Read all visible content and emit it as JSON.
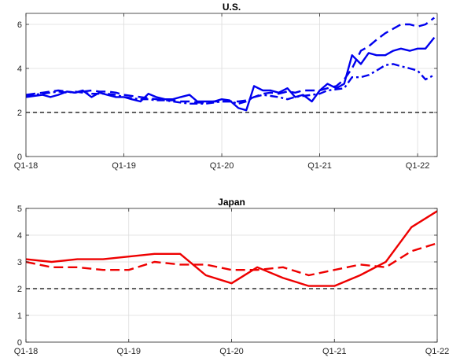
{
  "chart_data": [
    {
      "type": "line",
      "title": "U.S.",
      "xlabel": "",
      "ylabel": "",
      "x_tick_labels": [
        "Q1-18",
        "Q1-19",
        "Q1-20",
        "Q1-21",
        "Q1-22"
      ],
      "x_ticks": [
        2018.0,
        2019.0,
        2020.0,
        2021.0,
        2022.0
      ],
      "xlim": [
        2018.0,
        2022.2
      ],
      "ylim": [
        0,
        6.5
      ],
      "y_ticks": [
        0,
        2,
        4,
        6
      ],
      "grid": true,
      "reference_line": {
        "y": 2,
        "style": "dashed",
        "color": "#000000"
      },
      "series": [
        {
          "color": "#0000ee",
          "style": "solid",
          "x": [
            2018.0,
            2018.08,
            2018.17,
            2018.25,
            2018.33,
            2018.42,
            2018.5,
            2018.58,
            2018.67,
            2018.75,
            2018.83,
            2018.92,
            2019.0,
            2019.08,
            2019.17,
            2019.25,
            2019.33,
            2019.42,
            2019.5,
            2019.58,
            2019.67,
            2019.75,
            2019.83,
            2019.92,
            2020.0,
            2020.08,
            2020.17,
            2020.25,
            2020.33,
            2020.42,
            2020.5,
            2020.58,
            2020.67,
            2020.75,
            2020.83,
            2020.92,
            2021.0,
            2021.08,
            2021.17,
            2021.25,
            2021.33,
            2021.42,
            2021.5,
            2021.58,
            2021.67,
            2021.75,
            2021.83,
            2021.92,
            2022.0,
            2022.08,
            2022.17
          ],
          "y": [
            2.7,
            2.75,
            2.8,
            2.7,
            2.8,
            2.95,
            2.9,
            3.0,
            2.7,
            2.9,
            2.8,
            2.7,
            2.7,
            2.6,
            2.5,
            2.85,
            2.7,
            2.6,
            2.6,
            2.7,
            2.8,
            2.5,
            2.5,
            2.5,
            2.6,
            2.55,
            2.2,
            2.1,
            3.2,
            3.0,
            3.0,
            2.9,
            3.1,
            2.7,
            2.8,
            2.5,
            3.0,
            3.3,
            3.1,
            3.3,
            4.6,
            4.2,
            4.7,
            4.6,
            4.6,
            4.8,
            4.9,
            4.8,
            4.9,
            4.9,
            5.4
          ]
        },
        {
          "color": "#0000ee",
          "style": "dashed",
          "x": [
            2018.0,
            2018.08,
            2018.17,
            2018.25,
            2018.33,
            2018.42,
            2018.5,
            2018.58,
            2018.67,
            2018.75,
            2018.83,
            2018.92,
            2019.0,
            2019.08,
            2019.17,
            2019.25,
            2019.33,
            2019.42,
            2019.5,
            2019.58,
            2019.67,
            2019.75,
            2019.83,
            2019.92,
            2020.0,
            2020.08,
            2020.17,
            2020.25,
            2020.33,
            2020.42,
            2020.5,
            2020.58,
            2020.67,
            2020.75,
            2020.83,
            2020.92,
            2021.0,
            2021.08,
            2021.17,
            2021.25,
            2021.33,
            2021.42,
            2021.5,
            2021.58,
            2021.67,
            2021.75,
            2021.83,
            2021.92,
            2022.0,
            2022.08,
            2022.17
          ],
          "y": [
            2.8,
            2.85,
            2.9,
            2.95,
            3.0,
            2.95,
            2.9,
            2.95,
            3.0,
            2.95,
            2.95,
            2.9,
            2.8,
            2.75,
            2.7,
            2.65,
            2.6,
            2.55,
            2.55,
            2.5,
            2.5,
            2.45,
            2.45,
            2.5,
            2.5,
            2.5,
            2.5,
            2.55,
            2.7,
            2.85,
            2.9,
            2.85,
            2.95,
            2.9,
            3.0,
            3.0,
            3.0,
            3.1,
            3.2,
            3.5,
            4.0,
            4.8,
            5.0,
            5.3,
            5.6,
            5.8,
            6.0,
            6.0,
            5.9,
            6.0,
            6.3
          ]
        },
        {
          "color": "#0000ee",
          "style": "dash-dot",
          "x": [
            2018.0,
            2018.08,
            2018.17,
            2018.25,
            2018.33,
            2018.42,
            2018.5,
            2018.58,
            2018.67,
            2018.75,
            2018.83,
            2018.92,
            2019.0,
            2019.08,
            2019.17,
            2019.25,
            2019.33,
            2019.42,
            2019.5,
            2019.58,
            2019.67,
            2019.75,
            2019.83,
            2019.92,
            2020.0,
            2020.08,
            2020.17,
            2020.25,
            2020.33,
            2020.42,
            2020.5,
            2020.58,
            2020.67,
            2020.75,
            2020.83,
            2020.92,
            2021.0,
            2021.08,
            2021.17,
            2021.25,
            2021.33,
            2021.42,
            2021.5,
            2021.58,
            2021.67,
            2021.75,
            2021.83,
            2021.92,
            2022.0,
            2022.08,
            2022.17
          ],
          "y": [
            2.75,
            2.8,
            2.85,
            2.9,
            2.95,
            2.9,
            2.95,
            2.9,
            2.85,
            2.85,
            2.85,
            2.8,
            2.7,
            2.65,
            2.6,
            2.6,
            2.55,
            2.55,
            2.5,
            2.45,
            2.4,
            2.4,
            2.4,
            2.45,
            2.5,
            2.5,
            2.4,
            2.5,
            2.7,
            2.8,
            2.75,
            2.7,
            2.6,
            2.7,
            2.75,
            2.8,
            2.85,
            3.0,
            3.05,
            3.1,
            3.6,
            3.6,
            3.7,
            3.9,
            4.15,
            4.2,
            4.1,
            4.0,
            3.9,
            3.5,
            3.7
          ]
        }
      ]
    },
    {
      "type": "line",
      "title": "Japan",
      "xlabel": "",
      "ylabel": "",
      "x_tick_labels": [
        "Q1-18",
        "Q1-19",
        "Q1-20",
        "Q1-21",
        "Q1-22"
      ],
      "x_ticks": [
        2018.0,
        2019.0,
        2020.0,
        2021.0,
        2022.0
      ],
      "xlim": [
        2018.0,
        2022.0
      ],
      "ylim": [
        0,
        5
      ],
      "y_ticks": [
        0,
        1,
        2,
        3,
        4,
        5
      ],
      "grid": true,
      "reference_line": {
        "y": 2,
        "style": "dashed",
        "color": "#000000"
      },
      "series": [
        {
          "color": "#ee0000",
          "style": "solid",
          "x": [
            2018.0,
            2018.25,
            2018.5,
            2018.75,
            2019.0,
            2019.25,
            2019.5,
            2019.75,
            2020.0,
            2020.25,
            2020.5,
            2020.75,
            2021.0,
            2021.25,
            2021.5,
            2021.75,
            2022.0
          ],
          "y": [
            3.1,
            3.0,
            3.1,
            3.1,
            3.2,
            3.3,
            3.3,
            2.5,
            2.2,
            2.8,
            2.4,
            2.1,
            2.1,
            2.5,
            3.0,
            4.3,
            4.9
          ]
        },
        {
          "color": "#ee0000",
          "style": "dashed",
          "x": [
            2018.0,
            2018.25,
            2018.5,
            2018.75,
            2019.0,
            2019.25,
            2019.5,
            2019.75,
            2020.0,
            2020.25,
            2020.5,
            2020.75,
            2021.0,
            2021.25,
            2021.5,
            2021.75,
            2022.0
          ],
          "y": [
            3.0,
            2.8,
            2.8,
            2.7,
            2.7,
            3.0,
            2.9,
            2.9,
            2.7,
            2.7,
            2.8,
            2.5,
            2.7,
            2.9,
            2.8,
            3.4,
            3.7
          ]
        }
      ]
    }
  ]
}
